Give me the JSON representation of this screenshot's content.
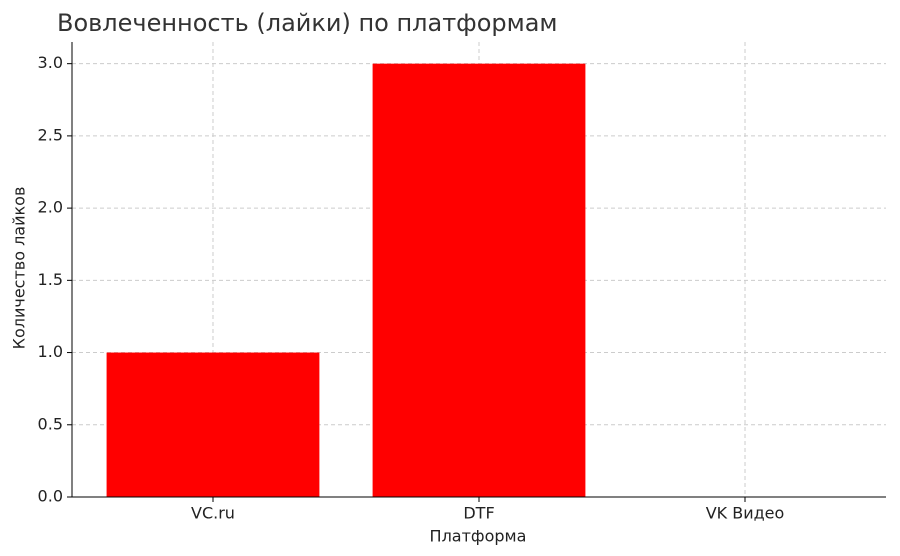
{
  "chart_data": {
    "type": "bar",
    "title": "Вовлеченность (лайки) по платформам",
    "xlabel": "Платформа",
    "ylabel": "Количество лайков",
    "categories": [
      "VC.ru",
      "DTF",
      "VK Видео"
    ],
    "values": [
      1,
      3,
      0
    ],
    "color": "#ff0000",
    "ylim": [
      0,
      3.15
    ],
    "yticks": [
      {
        "value": 0,
        "label": "0.0"
      },
      0.5,
      {
        "value": 1,
        "label": "1.0"
      },
      1.5,
      {
        "value": 2,
        "label": "2.0"
      },
      2.5,
      {
        "value": 3,
        "label": "3.0"
      }
    ],
    "grid": true
  }
}
